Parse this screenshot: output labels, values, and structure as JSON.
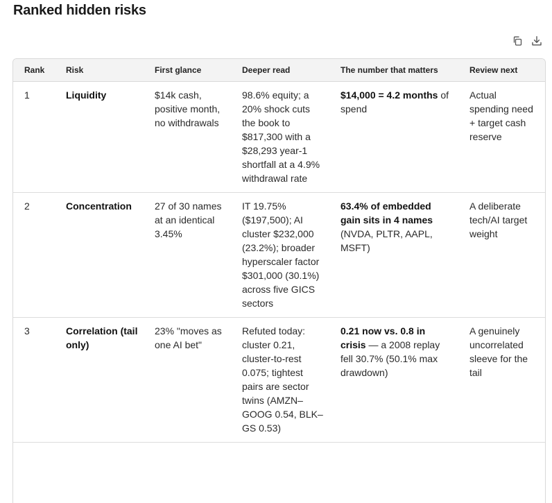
{
  "heading": "Ranked hidden risks",
  "toolbar": {
    "copy_icon": "copy-icon",
    "download_icon": "download-icon"
  },
  "table": {
    "headers": [
      "Rank",
      "Risk",
      "First glance",
      "Deeper read",
      "The number that matters",
      "Review next"
    ],
    "rows": [
      {
        "rank": "1",
        "risk": "Liquidity",
        "first_glance": "$14k cash, positive month, no withdrawals",
        "deeper_read": "98.6% equity; a 20% shock cuts the book to $817,300 with a $28,293 year-1 shortfall at a 4.9% withdrawal rate",
        "number_bold": "$14,000 = 4.2 months",
        "number_rest": " of spend",
        "review_next": "Actual spending need + target cash reserve"
      },
      {
        "rank": "2",
        "risk": "Concentration",
        "first_glance": "27 of 30 names at an identical 3.45%",
        "deeper_read": "IT 19.75% ($197,500); AI cluster $232,000 (23.2%); broader hyperscaler factor $301,000 (30.1%) across five GICS sectors",
        "number_bold": "63.4% of embedded gain sits in 4 names",
        "number_rest": " (NVDA, PLTR, AAPL, MSFT)",
        "review_next": "A deliberate tech/AI target weight"
      },
      {
        "rank": "3",
        "risk": "Correlation (tail only)",
        "first_glance": "23% \"moves as one AI bet\"",
        "deeper_read": "Refuted today: cluster 0.21, cluster-to-rest 0.075; tightest pairs are sector twins (AMZN–GOOG 0.54, BLK–GS 0.53)",
        "number_bold": "0.21 now vs. 0.8 in crisis",
        "number_rest": " — a 2008 replay fell 30.7% (50.1% max drawdown)",
        "review_next": "A genuinely uncorrelated sleeve for the tail"
      }
    ]
  }
}
